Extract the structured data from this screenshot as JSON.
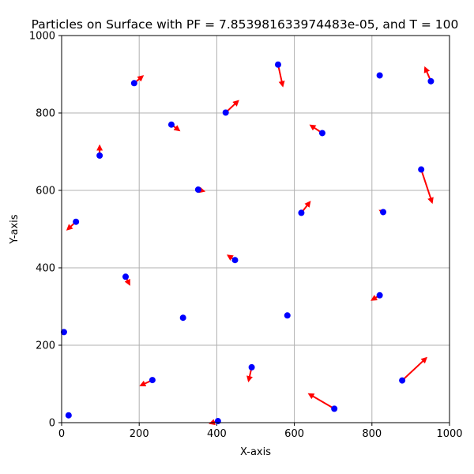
{
  "chart_data": {
    "type": "scatter",
    "title": "Particles on Surface with PF = 7.853981633974483e-05, and T = 100",
    "xlabel": "X-axis",
    "ylabel": "Y-axis",
    "xlim": [
      0,
      1000
    ],
    "ylim": [
      0,
      1000
    ],
    "xticks": [
      0,
      200,
      400,
      600,
      800,
      1000
    ],
    "yticks": [
      0,
      200,
      400,
      600,
      800,
      1000
    ],
    "grid": true,
    "point_color": "#0000ff",
    "arrow_color": "#ff0000",
    "particles": [
      {
        "x": 558,
        "y": 925,
        "vx": 12,
        "vy": -55
      },
      {
        "x": 187,
        "y": 877,
        "vx": 22,
        "vy": 18
      },
      {
        "x": 952,
        "y": 882,
        "vx": -15,
        "vy": 35
      },
      {
        "x": 820,
        "y": 897,
        "vx": 0,
        "vy": 0
      },
      {
        "x": 423,
        "y": 801,
        "vx": 32,
        "vy": 30
      },
      {
        "x": 283,
        "y": 770,
        "vx": 20,
        "vy": -15
      },
      {
        "x": 672,
        "y": 748,
        "vx": -30,
        "vy": 20
      },
      {
        "x": 98,
        "y": 690,
        "vx": 0,
        "vy": 25
      },
      {
        "x": 927,
        "y": 654,
        "vx": 28,
        "vy": -85
      },
      {
        "x": 352,
        "y": 602,
        "vx": 15,
        "vy": -4
      },
      {
        "x": 618,
        "y": 542,
        "vx": 22,
        "vy": 28
      },
      {
        "x": 829,
        "y": 544,
        "vx": -8,
        "vy": 4
      },
      {
        "x": 37,
        "y": 519,
        "vx": -22,
        "vy": -20
      },
      {
        "x": 447,
        "y": 420,
        "vx": -18,
        "vy": 12
      },
      {
        "x": 165,
        "y": 377,
        "vx": 10,
        "vy": -20
      },
      {
        "x": 820,
        "y": 329,
        "vx": -20,
        "vy": -12
      },
      {
        "x": 582,
        "y": 277,
        "vx": 0,
        "vy": 0
      },
      {
        "x": 313,
        "y": 271,
        "vx": 0,
        "vy": 0
      },
      {
        "x": 6,
        "y": 234,
        "vx": 0,
        "vy": 0
      },
      {
        "x": 490,
        "y": 143,
        "vx": -8,
        "vy": -35
      },
      {
        "x": 878,
        "y": 109,
        "vx": 62,
        "vy": 58
      },
      {
        "x": 234,
        "y": 110,
        "vx": -30,
        "vy": -14
      },
      {
        "x": 703,
        "y": 36,
        "vx": -65,
        "vy": 38
      },
      {
        "x": 18,
        "y": 19,
        "vx": 0,
        "vy": 0
      },
      {
        "x": 403,
        "y": 4,
        "vx": -20,
        "vy": -6
      }
    ]
  }
}
